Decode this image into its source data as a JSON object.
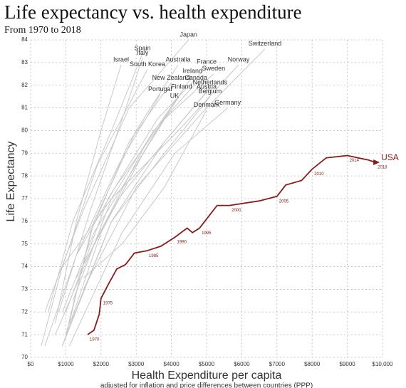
{
  "chart_data": {
    "type": "line",
    "title": "Life expectancy vs. health expenditure",
    "subtitle": "From 1970 to 2018",
    "x_label": "Health Expenditure per capita",
    "x_sublabel": "adjusted for inflation and price differences between countries (PPP)",
    "y_label": "Life Expectancy",
    "xlim": [
      0,
      10000
    ],
    "ylim": [
      70,
      84
    ],
    "xticks": [
      {
        "value": 0,
        "label": "$0"
      },
      {
        "value": 1000,
        "label": "$1000"
      },
      {
        "value": 2000,
        "label": "$2000"
      },
      {
        "value": 3000,
        "label": "$3000"
      },
      {
        "value": 4000,
        "label": "$4000"
      },
      {
        "value": 5000,
        "label": "$5000"
      },
      {
        "value": 6000,
        "label": "$6000"
      },
      {
        "value": 7000,
        "label": "$7000"
      },
      {
        "value": 8000,
        "label": "$8000"
      },
      {
        "value": 9000,
        "label": "$9000"
      },
      {
        "value": 10000,
        "label": "$10,000"
      }
    ],
    "yticks": [
      70,
      71,
      72,
      73,
      74,
      75,
      76,
      77,
      78,
      79,
      80,
      81,
      82,
      83,
      84
    ],
    "grid": true,
    "series": [
      {
        "name": "Japan",
        "color": "#c8c8c8",
        "x": [
          400,
          1500,
          2800,
          4490
        ],
        "values": [
          72.0,
          76.5,
          81.0,
          84.0
        ]
      },
      {
        "name": "Switzerland",
        "color": "#c8c8c8",
        "x": [
          1500,
          3000,
          5000,
          6660
        ],
        "values": [
          73.0,
          77.5,
          81.0,
          83.6
        ]
      },
      {
        "name": "Spain",
        "color": "#c8c8c8",
        "x": [
          500,
          1200,
          2300,
          3180
        ],
        "values": [
          72.0,
          76.0,
          80.0,
          83.4
        ]
      },
      {
        "name": "Italy",
        "color": "#c8c8c8",
        "x": [
          800,
          1700,
          2600,
          3180
        ],
        "values": [
          72.0,
          76.5,
          80.5,
          83.2
        ]
      },
      {
        "name": "Israel",
        "color": "#c8c8c8",
        "x": [
          700,
          1300,
          2000,
          2570
        ],
        "values": [
          71.5,
          76.0,
          80.0,
          82.9
        ]
      },
      {
        "name": "South Korea",
        "color": "#c8c8c8",
        "x": [
          300,
          900,
          1900,
          3320
        ],
        "values": [
          70.5,
          74.0,
          78.5,
          82.7
        ]
      },
      {
        "name": "Australia",
        "color": "#c8c8c8",
        "x": [
          1000,
          1800,
          3000,
          4190
        ],
        "values": [
          71.0,
          76.0,
          80.0,
          82.9
        ]
      },
      {
        "name": "France",
        "color": "#c8c8c8",
        "x": [
          1000,
          2200,
          3600,
          5000
        ],
        "values": [
          72.0,
          77.0,
          80.5,
          82.8
        ]
      },
      {
        "name": "Norway",
        "color": "#c8c8c8",
        "x": [
          900,
          2300,
          4200,
          5910
        ],
        "values": [
          74.0,
          77.0,
          80.0,
          82.9
        ]
      },
      {
        "name": "Ireland",
        "color": "#c8c8c8",
        "x": [
          700,
          1800,
          3300,
          4600
        ],
        "values": [
          71.0,
          75.0,
          79.5,
          82.4
        ]
      },
      {
        "name": "Sweden",
        "color": "#c8c8c8",
        "x": [
          1300,
          2400,
          3800,
          5200
        ],
        "values": [
          74.5,
          77.5,
          80.5,
          82.5
        ]
      },
      {
        "name": "New Zealand",
        "color": "#c8c8c8",
        "x": [
          1100,
          1700,
          2800,
          3990
        ],
        "values": [
          71.5,
          75.5,
          79.5,
          82.1
        ]
      },
      {
        "name": "Canada",
        "color": "#c8c8c8",
        "x": [
          1200,
          2300,
          3500,
          4700
        ],
        "values": [
          72.5,
          77.0,
          80.0,
          82.1
        ]
      },
      {
        "name": "Netherlands",
        "color": "#c8c8c8",
        "x": [
          1300,
          2500,
          3800,
          5100
        ],
        "values": [
          73.5,
          77.0,
          79.5,
          81.9
        ]
      },
      {
        "name": "Portugal",
        "color": "#c8c8c8",
        "x": [
          400,
          1300,
          2500,
          3680
        ],
        "values": [
          70.5,
          74.5,
          78.5,
          81.6
        ]
      },
      {
        "name": "Finland",
        "color": "#c8c8c8",
        "x": [
          900,
          2000,
          3200,
          4290
        ],
        "values": [
          70.5,
          75.5,
          79.0,
          81.7
        ]
      },
      {
        "name": "Austria",
        "color": "#c8c8c8",
        "x": [
          900,
          2300,
          3800,
          5000
        ],
        "values": [
          70.5,
          76.0,
          79.5,
          81.7
        ]
      },
      {
        "name": "Belgium",
        "color": "#c8c8c8",
        "x": [
          1000,
          2300,
          3800,
          5100
        ],
        "values": [
          71.0,
          76.0,
          79.0,
          81.5
        ]
      },
      {
        "name": "UK",
        "color": "#c8c8c8",
        "x": [
          900,
          1800,
          3000,
          4090
        ],
        "values": [
          72.0,
          75.5,
          78.5,
          81.3
        ]
      },
      {
        "name": "Germany",
        "color": "#c8c8c8",
        "x": [
          1100,
          2600,
          4100,
          5600
        ],
        "values": [
          70.5,
          75.5,
          79.0,
          81.0
        ]
      },
      {
        "name": "Denmark",
        "color": "#c8c8c8",
        "x": [
          1500,
          2600,
          3800,
          5000
        ],
        "values": [
          73.5,
          75.0,
          77.5,
          80.9
        ]
      },
      {
        "name": "USA",
        "color": "#8b1a1a",
        "x": [
          1620,
          1800,
          1950,
          2000,
          2200,
          2450,
          2700,
          2950,
          3300,
          3700,
          4100,
          4450,
          4600,
          4800,
          5000,
          5300,
          5650,
          6500,
          7000,
          7250,
          7700,
          8000,
          8400,
          9000,
          9600,
          9800
        ],
        "values": [
          71.0,
          71.2,
          71.9,
          72.6,
          73.2,
          73.9,
          74.1,
          74.6,
          74.7,
          74.9,
          75.3,
          75.7,
          75.5,
          75.7,
          76.1,
          76.7,
          76.7,
          76.9,
          77.1,
          77.6,
          77.8,
          78.3,
          78.8,
          78.9,
          78.7,
          78.6
        ],
        "point_labels": [
          1970,
          null,
          null,
          1975,
          null,
          null,
          null,
          null,
          1985,
          null,
          1990,
          null,
          null,
          1995,
          null,
          null,
          2000,
          null,
          2005,
          null,
          null,
          2010,
          null,
          2014,
          null,
          2018
        ]
      }
    ]
  }
}
